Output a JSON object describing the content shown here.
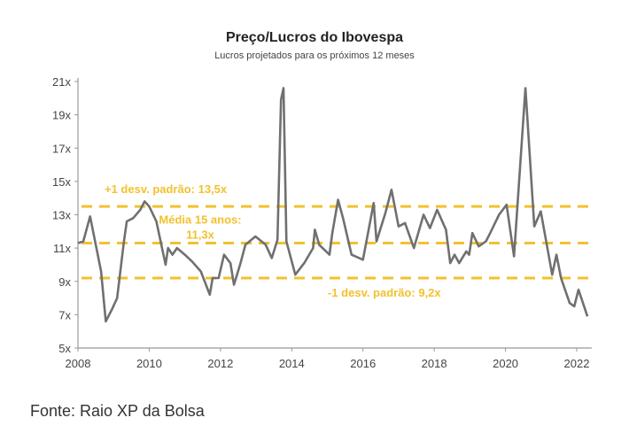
{
  "chart_data": {
    "type": "line",
    "title": "Preço/Lucros do Ibovespa",
    "subtitle": "Lucros projetados para os próximos 12 meses",
    "xlabel": "",
    "ylabel": "",
    "xlim": [
      2008,
      2022.4
    ],
    "ylim": [
      5,
      21
    ],
    "x_ticks": [
      "2008",
      "2010",
      "2012",
      "2014",
      "2016",
      "2018",
      "2020",
      "2022"
    ],
    "x_tick_values": [
      2008,
      2010,
      2012,
      2014,
      2016,
      2018,
      2020,
      2022
    ],
    "y_ticks": [
      "5x",
      "7x",
      "9x",
      "11x",
      "13x",
      "15x",
      "17x",
      "19x",
      "21x"
    ],
    "y_tick_values": [
      5,
      7,
      9,
      11,
      13,
      15,
      17,
      19,
      21
    ],
    "grid": false,
    "series": [
      {
        "name": "P/L Ibovespa",
        "color": "#707070",
        "x": [
          2008.0,
          2008.15,
          2008.34,
          2008.5,
          2008.65,
          2008.78,
          2008.95,
          2009.1,
          2009.29,
          2009.37,
          2009.55,
          2009.75,
          2009.87,
          2010.0,
          2010.2,
          2010.46,
          2010.53,
          2010.65,
          2010.78,
          2011.0,
          2011.2,
          2011.45,
          2011.7,
          2011.78,
          2011.95,
          2012.1,
          2012.28,
          2012.38,
          2012.55,
          2012.7,
          2012.98,
          2013.27,
          2013.44,
          2013.6,
          2013.7,
          2013.77,
          2013.85,
          2014.1,
          2014.35,
          2014.6,
          2014.65,
          2014.77,
          2015.06,
          2015.14,
          2015.3,
          2015.44,
          2015.68,
          2016.0,
          2016.3,
          2016.38,
          2016.63,
          2016.8,
          2017.0,
          2017.18,
          2017.43,
          2017.7,
          2017.88,
          2018.08,
          2018.33,
          2018.45,
          2018.57,
          2018.7,
          2018.9,
          2018.98,
          2019.07,
          2019.25,
          2019.45,
          2019.57,
          2019.82,
          2020.03,
          2020.24,
          2020.56,
          2020.81,
          2020.99,
          2021.31,
          2021.43,
          2021.56,
          2021.8,
          2021.93,
          2022.05,
          2022.3
        ],
        "y": [
          11.3,
          11.4,
          12.9,
          11.2,
          9.6,
          6.6,
          7.3,
          8.0,
          11.4,
          12.6,
          12.8,
          13.3,
          13.8,
          13.5,
          12.6,
          10.0,
          11.0,
          10.6,
          11.0,
          10.6,
          10.2,
          9.6,
          8.2,
          9.2,
          9.2,
          10.6,
          10.1,
          8.8,
          10.0,
          11.2,
          11.7,
          11.2,
          10.4,
          11.5,
          19.9,
          20.6,
          11.4,
          9.4,
          10.1,
          11.0,
          12.1,
          11.2,
          10.6,
          11.9,
          13.9,
          12.8,
          10.6,
          10.3,
          13.7,
          11.4,
          13.1,
          14.5,
          12.3,
          12.5,
          11.0,
          13.0,
          12.2,
          13.3,
          12.1,
          10.1,
          10.6,
          10.1,
          10.8,
          10.6,
          11.9,
          11.1,
          11.4,
          11.9,
          13.0,
          13.6,
          10.5,
          20.6,
          12.3,
          13.2,
          9.4,
          10.6,
          9.2,
          7.7,
          7.5,
          8.5,
          6.9
        ]
      }
    ],
    "reference_lines": [
      {
        "value": 13.5,
        "label": "+1 desv. padrão: 13,5x",
        "color": "#f2c12e"
      },
      {
        "value": 11.3,
        "label_line1": "Média 15 anos:",
        "label_line2": "11,3x",
        "color": "#f2c12e"
      },
      {
        "value": 9.2,
        "label": "-1 desv. padrão: 9,2x",
        "color": "#f2c12e"
      }
    ]
  },
  "source": "Fonte: Raio XP da Bolsa"
}
